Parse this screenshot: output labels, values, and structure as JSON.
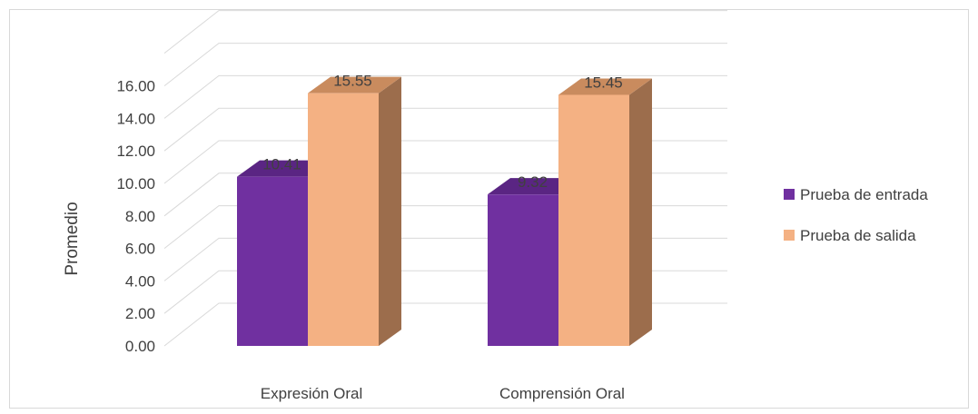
{
  "chart_data": {
    "type": "bar",
    "style": "3d-clustered-column",
    "categories": [
      "Expresión Oral",
      "Comprensión Oral"
    ],
    "series": [
      {
        "name": "Prueba de entrada",
        "values": [
          10.41,
          9.32
        ],
        "labels": [
          "10.41",
          "9.32"
        ],
        "color": "#7030a0",
        "top_color": "#5a2583",
        "side_color": "#4b1f6d"
      },
      {
        "name": "Prueba de salida",
        "values": [
          15.55,
          15.45
        ],
        "labels": [
          "15.55",
          "15.45"
        ],
        "color": "#f4b183",
        "top_color": "#c98b5e",
        "side_color": "#9c6d4c"
      }
    ],
    "ylabel": "Promedio",
    "ylim": [
      0,
      16
    ],
    "yticks": [
      "0.00",
      "2.00",
      "4.00",
      "6.00",
      "8.00",
      "10.00",
      "12.00",
      "14.00",
      "16.00"
    ],
    "grid": true,
    "legend": "right",
    "gridline_color": "#d9d9d9",
    "text_color": "#404040"
  }
}
